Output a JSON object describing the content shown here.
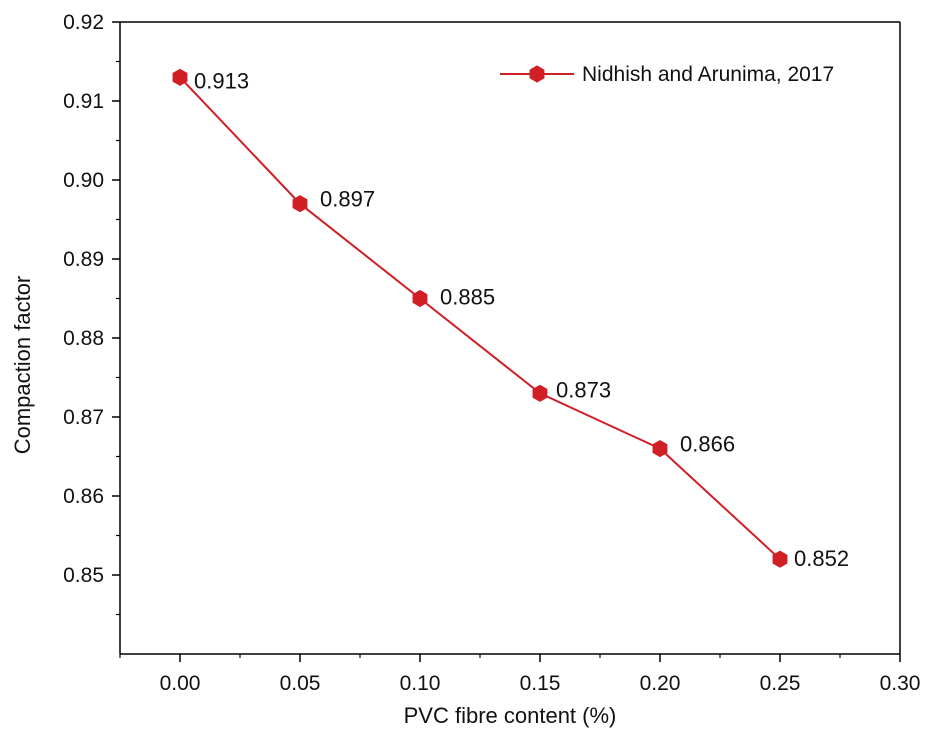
{
  "chart_data": {
    "type": "line",
    "xlabel": "PVC fibre content (%)",
    "ylabel": "Compaction factor",
    "xlim": [
      -0.025,
      0.3
    ],
    "ylim": [
      0.84,
      0.92
    ],
    "x_ticks": [
      "0.00",
      "0.05",
      "0.10",
      "0.15",
      "0.20",
      "0.25",
      "0.30"
    ],
    "y_ticks": [
      "0.85",
      "0.86",
      "0.87",
      "0.88",
      "0.89",
      "0.90",
      "0.91",
      "0.92"
    ],
    "legend_position": "top-right",
    "grid": false,
    "series": [
      {
        "name": "Nidhish and Arunima, 2017",
        "color": "#d11f26",
        "marker": "hexagon",
        "x": [
          0.0,
          0.05,
          0.1,
          0.15,
          0.2,
          0.25
        ],
        "y": [
          0.913,
          0.897,
          0.885,
          0.873,
          0.866,
          0.852
        ],
        "labels": [
          "0.913",
          "0.897",
          "0.885",
          "0.873",
          "0.866",
          "0.852"
        ]
      }
    ]
  }
}
